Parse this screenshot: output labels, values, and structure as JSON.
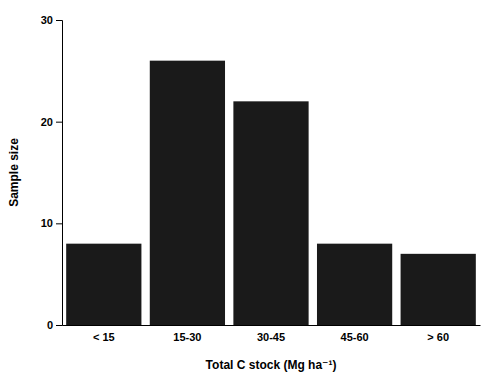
{
  "chart_data": {
    "type": "bar",
    "categories": [
      "< 15",
      "15-30",
      "30-45",
      "45-60",
      "> 60"
    ],
    "values": [
      8,
      26,
      22,
      8,
      7
    ],
    "color": "#1a1a1a",
    "xlabel": "Total C stock (Mg ha⁻¹)",
    "ylabel": "Sample size",
    "ylim": [
      0,
      30
    ],
    "yticks": [
      0,
      10,
      20,
      30
    ],
    "grid": false
  }
}
